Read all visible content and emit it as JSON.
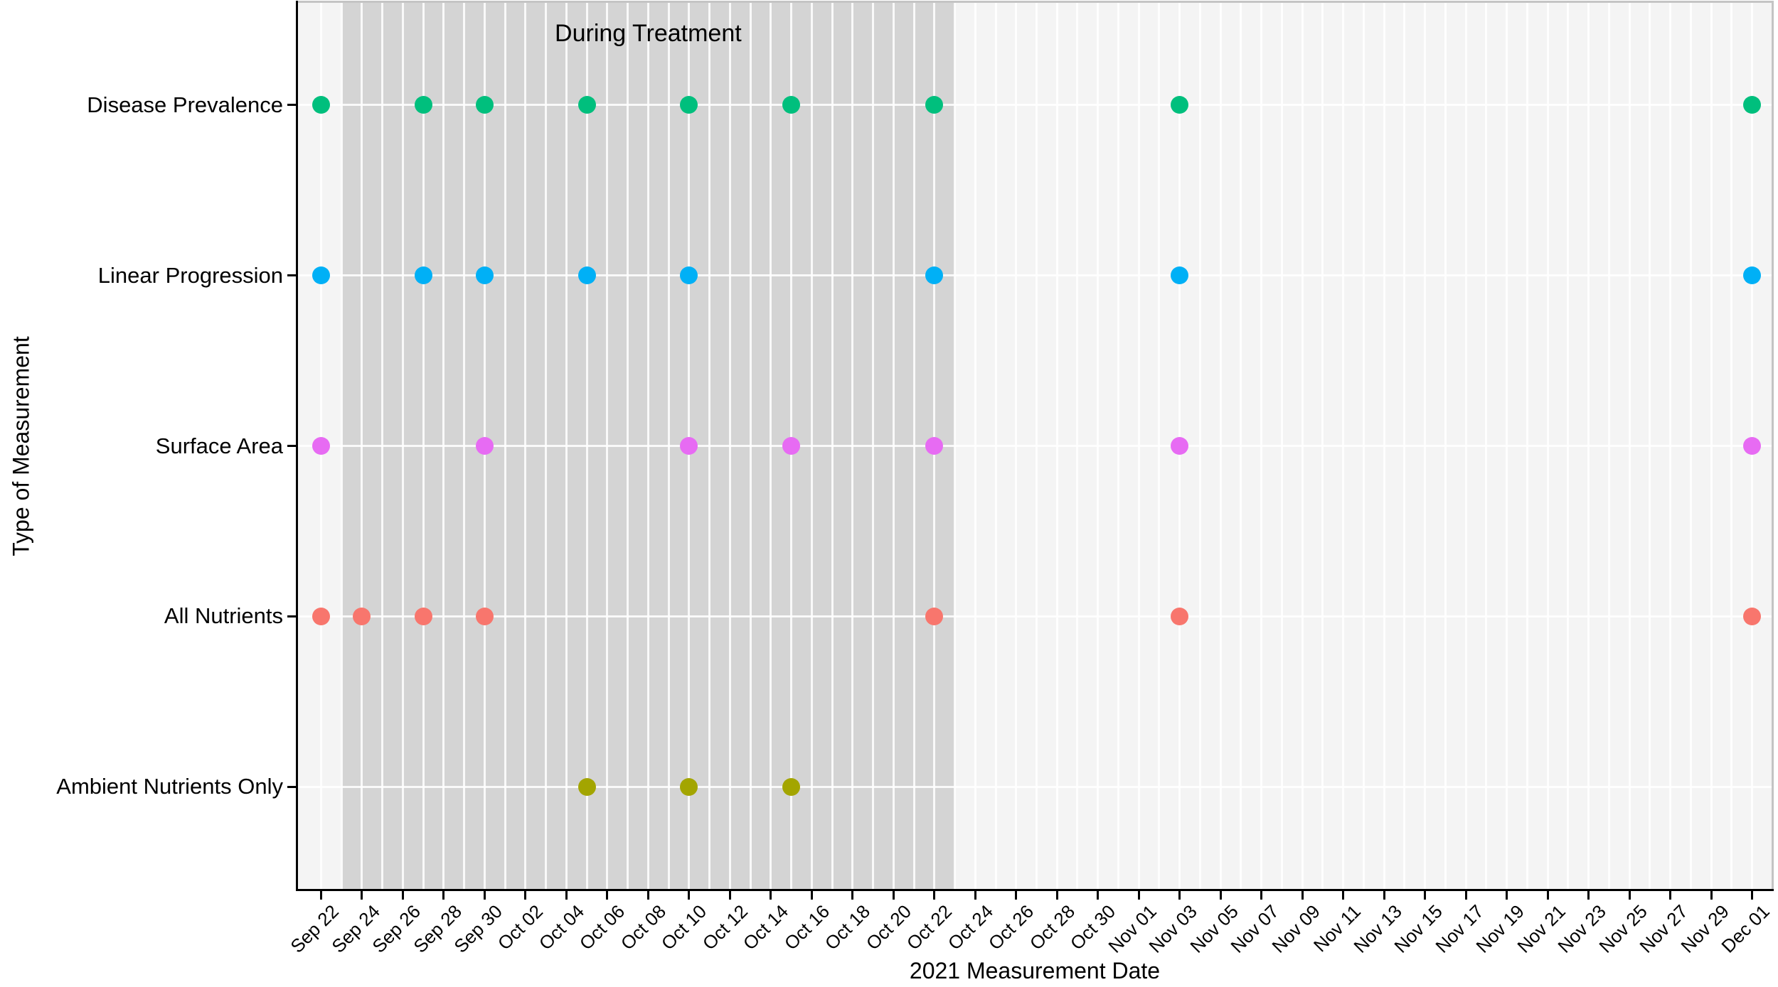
{
  "figure": {
    "x_axis_title": "2021 Measurement Date",
    "y_axis_title": "Type of Measurement"
  },
  "chart_data": {
    "type": "scatter",
    "title": "",
    "xlabel": "2021 Measurement Date",
    "ylabel": "Type of Measurement",
    "year_shown": "2021",
    "x_range": [
      "Sep 22",
      "Dec 01"
    ],
    "x_tick_labels": [
      "Sep 22",
      "Sep 24",
      "Sep 26",
      "Sep 28",
      "Sep 30",
      "Oct 02",
      "Oct 04",
      "Oct 06",
      "Oct 08",
      "Oct 10",
      "Oct 12",
      "Oct 14",
      "Oct 16",
      "Oct 18",
      "Oct 20",
      "Oct 22",
      "Oct 24",
      "Oct 26",
      "Oct 28",
      "Oct 30",
      "Nov 01",
      "Nov 03",
      "Nov 05",
      "Nov 07",
      "Nov 09",
      "Nov 11",
      "Nov 13",
      "Nov 15",
      "Nov 17",
      "Nov 19",
      "Nov 21",
      "Nov 23",
      "Nov 25",
      "Nov 27",
      "Nov 29",
      "Dec 01"
    ],
    "categories_top_to_bottom": [
      "Disease Prevalence",
      "Linear Progression",
      "Surface Area",
      "All Nutrients",
      "Ambient Nutrients Only"
    ],
    "annotation": {
      "label": "During Treatment",
      "start": "Sep 23",
      "end": "Oct 23"
    },
    "grid": "white daily vertical lines and white category horizontal lines on gray panel",
    "legend": "none",
    "series": [
      {
        "name": "Disease Prevalence",
        "color": "#00BF7D",
        "dates": [
          "Sep 22",
          "Sep 27",
          "Sep 30",
          "Oct 05",
          "Oct 10",
          "Oct 15",
          "Oct 22",
          "Nov 03",
          "Dec 01"
        ]
      },
      {
        "name": "Linear Progression",
        "color": "#00B0F6",
        "dates": [
          "Sep 22",
          "Sep 27",
          "Sep 30",
          "Oct 05",
          "Oct 10",
          "Oct 22",
          "Nov 03",
          "Dec 01"
        ]
      },
      {
        "name": "Surface Area",
        "color": "#E76BF3",
        "dates": [
          "Sep 22",
          "Sep 30",
          "Oct 10",
          "Oct 15",
          "Oct 22",
          "Nov 03",
          "Dec 01"
        ]
      },
      {
        "name": "All Nutrients",
        "color": "#F8766D",
        "dates": [
          "Sep 22",
          "Sep 24",
          "Sep 27",
          "Sep 30",
          "Oct 22",
          "Nov 03",
          "Dec 01"
        ]
      },
      {
        "name": "Ambient Nutrients Only",
        "color": "#A3A500",
        "dates": [
          "Oct 05",
          "Oct 10",
          "Oct 15"
        ]
      }
    ],
    "panel_colors": {
      "background": "#f4f4f4",
      "treatment_band": "#d4d4d4",
      "gridline": "#ffffff",
      "axis": "#000000"
    }
  }
}
